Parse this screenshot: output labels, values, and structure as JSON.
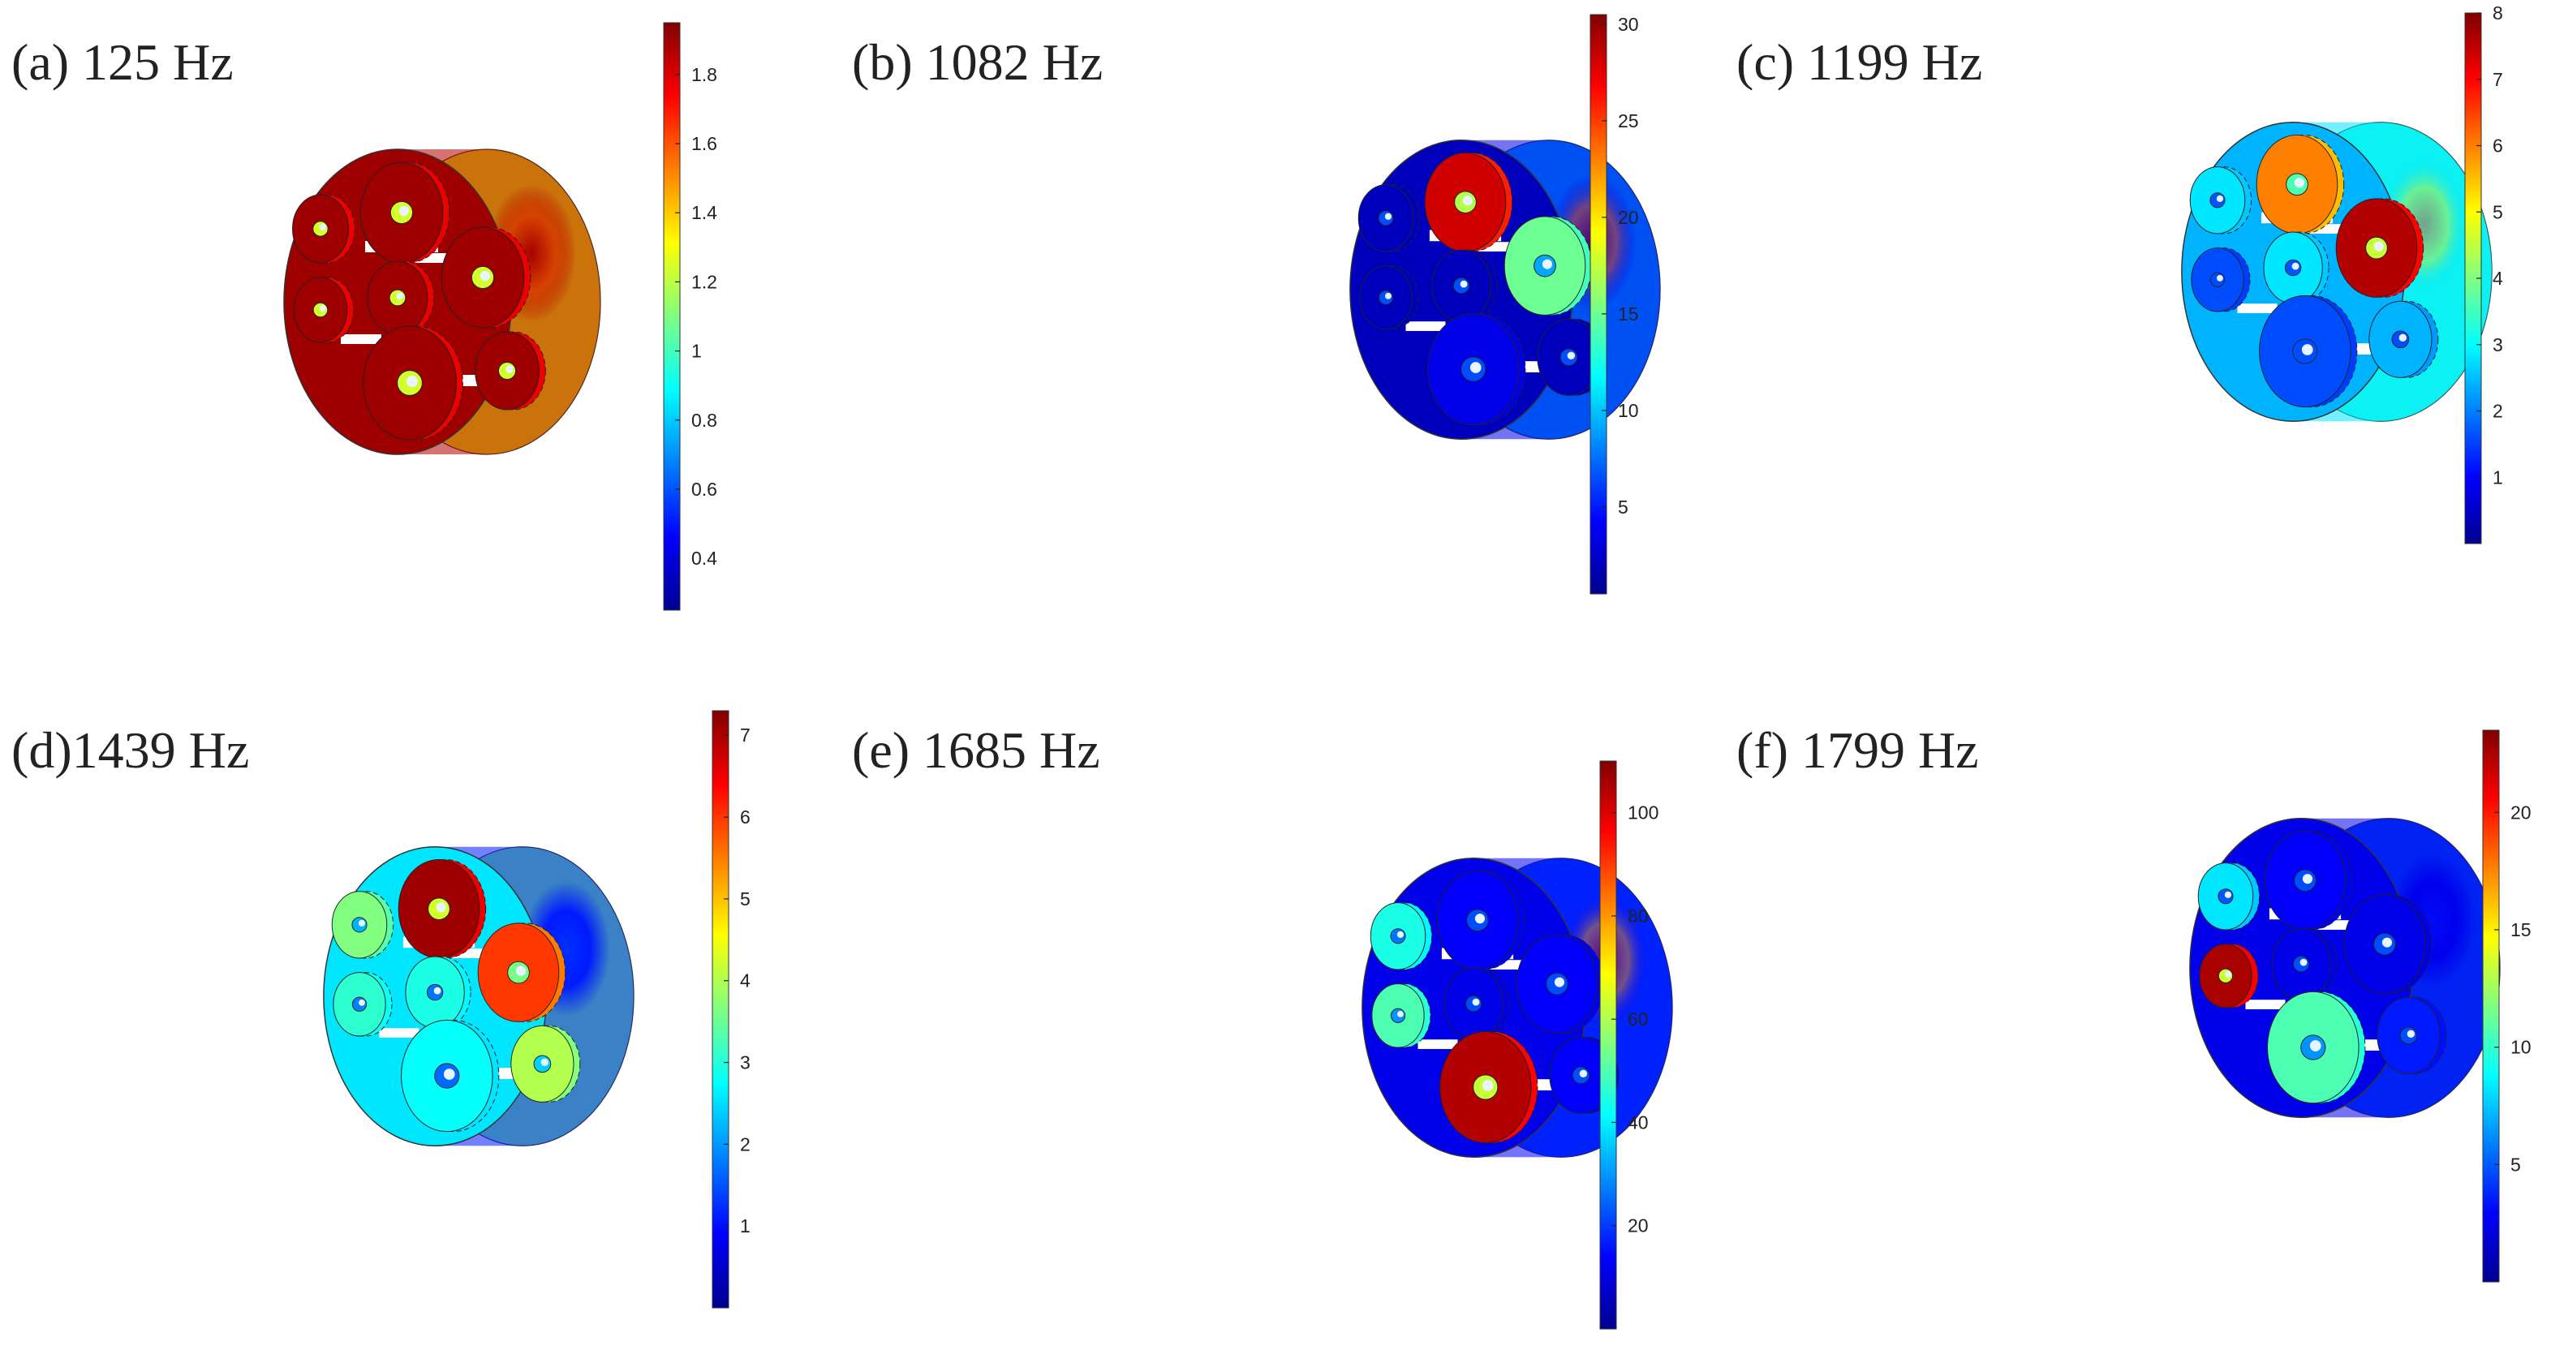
{
  "colormap": [
    "#00008f",
    "#0000ff",
    "#0080ff",
    "#00ffff",
    "#80ff80",
    "#ffff00",
    "#ff8000",
    "#ff0000",
    "#800000"
  ],
  "panels": [
    {
      "id": "a",
      "label": "(a) 125 Hz",
      "scale": {
        "min": 0.25,
        "max": 1.95,
        "ticks": [
          "0.4",
          "0.6",
          "0.8",
          "1",
          "1.2",
          "1.4",
          "1.6",
          "1.8"
        ],
        "values": [
          0.4,
          0.6,
          0.8,
          1,
          1.2,
          1.4,
          1.6,
          1.8
        ]
      },
      "levels": {
        "ring": 0.95,
        "rim": 0.6,
        "back": 0.97,
        "c1": 0.97,
        "c2": 0.97,
        "c3": 0.97,
        "c4": 0.97,
        "c5": 0.97,
        "c6": 0.97,
        "c7": 0.97,
        "hot": 0.97
      }
    },
    {
      "id": "b",
      "label": "(b) 1082 Hz",
      "scale": {
        "min": 0.5,
        "max": 30.5,
        "ticks": [
          "5",
          "10",
          "15",
          "20",
          "25",
          "30"
        ],
        "values": [
          5,
          10,
          15,
          20,
          25,
          30
        ]
      },
      "levels": {
        "ring": 0.1,
        "rim": 0.3,
        "back": 0.05,
        "c1": 0.05,
        "c2": 0.92,
        "c3": 0.05,
        "c4": 0.05,
        "c5": 0.48,
        "c6": 0.1,
        "c7": 0.05,
        "hot": 0.97
      }
    },
    {
      "id": "c",
      "label": "(c) 1199 Hz",
      "scale": {
        "min": 0,
        "max": 8,
        "ticks": [
          "1",
          "2",
          "3",
          "4",
          "5",
          "6",
          "7",
          "8"
        ],
        "values": [
          1,
          2,
          3,
          4,
          5,
          6,
          7,
          8
        ]
      },
      "levels": {
        "ring": 0.35,
        "rim": 0.4,
        "back": 0.3,
        "c1": 0.35,
        "c2": 0.75,
        "c3": 0.35,
        "c4": 0.2,
        "c5": 0.95,
        "c6": 0.2,
        "c7": 0.3,
        "hot": 0.8
      }
    },
    {
      "id": "d",
      "label": "(d)1439 Hz",
      "scale": {
        "min": 0,
        "max": 7.3,
        "ticks": [
          "1",
          "2",
          "3",
          "4",
          "5",
          "6",
          "7"
        ],
        "values": [
          1,
          2,
          3,
          4,
          5,
          6,
          7
        ]
      },
      "levels": {
        "ring": 0.15,
        "rim": 0.5,
        "back": 0.35,
        "c1": 0.5,
        "c2": 0.97,
        "c3": 0.4,
        "c4": 0.42,
        "c5": 0.82,
        "c6": 0.38,
        "c7": 0.55,
        "hot": 0.2
      }
    },
    {
      "id": "e",
      "label": "(e) 1685 Hz",
      "scale": {
        "min": 0,
        "max": 110,
        "ticks": [
          "20",
          "40",
          "60",
          "80",
          "100"
        ],
        "values": [
          20,
          40,
          60,
          80,
          100
        ]
      },
      "levels": {
        "ring": 0.12,
        "rim": 0.2,
        "back": 0.1,
        "c1": 0.4,
        "c2": 0.12,
        "c3": 0.1,
        "c4": 0.45,
        "c5": 0.12,
        "c6": 0.95,
        "c7": 0.12,
        "hot": 0.93
      }
    },
    {
      "id": "f",
      "label": "(f) 1799 Hz",
      "scale": {
        "min": 0,
        "max": 23.5,
        "ticks": [
          "5",
          "10",
          "15",
          "20"
        ],
        "values": [
          5,
          10,
          15,
          20
        ]
      },
      "levels": {
        "ring": 0.1,
        "rim": 0.2,
        "back": 0.1,
        "c1": 0.35,
        "c2": 0.12,
        "c3": 0.1,
        "c4": 0.96,
        "c5": 0.1,
        "c6": 0.45,
        "c7": 0.15,
        "hot": 0.15
      }
    }
  ]
}
